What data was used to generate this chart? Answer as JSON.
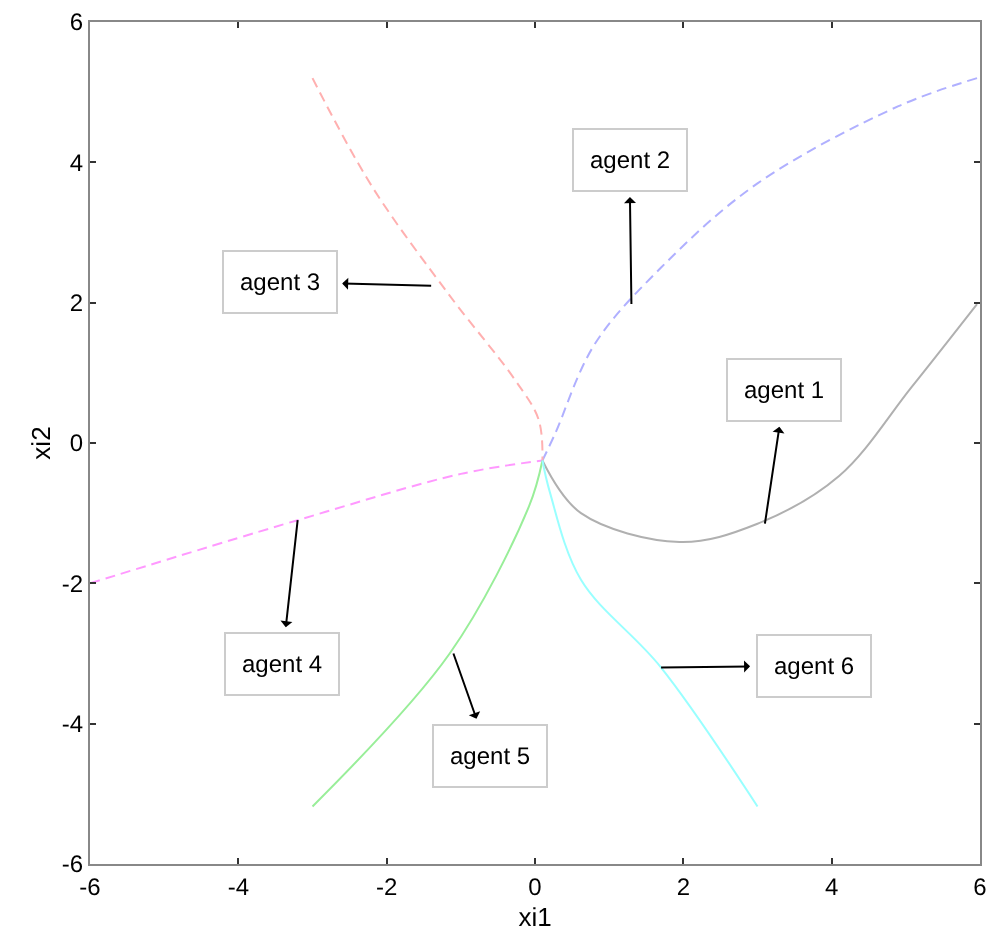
{
  "chart_data": {
    "type": "line",
    "xlabel": "xi1",
    "ylabel": "xi2",
    "xlim": [
      -6,
      6
    ],
    "ylim": [
      -6,
      6
    ],
    "xticks": [
      -6,
      -4,
      -2,
      0,
      2,
      4,
      6
    ],
    "yticks": [
      -6,
      -4,
      -2,
      0,
      2,
      4,
      6
    ],
    "series": [
      {
        "color": "#b0b0b0",
        "line_style": "solid",
        "x": [
          5.96,
          5.08,
          4.1,
          3.0,
          1.95,
          0.62,
          0.1
        ],
        "values": [
          1.98,
          0.8,
          -0.47,
          -1.15,
          -1.41,
          -1.0,
          -0.25
        ]
      },
      {
        "color": "#b0b0ff",
        "line_style": "dashed",
        "x": [
          5.96,
          4.9,
          3.0,
          1.7,
          0.8,
          0.27,
          0.1
        ],
        "values": [
          5.2,
          4.8,
          3.7,
          2.5,
          1.4,
          0.13,
          -0.25
        ]
      },
      {
        "color": "#ffb0b0",
        "line_style": "dashed",
        "x": [
          -3.0,
          -2.2,
          -1.15,
          -0.27,
          0.05,
          0.1
        ],
        "values": [
          5.2,
          3.66,
          2.1,
          0.9,
          0.33,
          -0.25
        ]
      },
      {
        "color": "#ff99ff",
        "line_style": "dashed",
        "x": [
          -6.0,
          -3.2,
          -1.0,
          0.1
        ],
        "values": [
          -2.0,
          -1.1,
          -0.44,
          -0.25
        ]
      },
      {
        "color": "#99ee99",
        "line_style": "solid",
        "x": [
          -3.0,
          -1.15,
          -0.08,
          0.1
        ],
        "values": [
          -5.18,
          -3.0,
          -0.9,
          -0.25
        ]
      },
      {
        "color": "#99ffff",
        "line_style": "solid",
        "x": [
          3.0,
          1.7,
          0.62,
          0.2,
          0.1
        ],
        "values": [
          -5.18,
          -3.2,
          -1.95,
          -0.7,
          -0.25
        ]
      }
    ],
    "annotations": [
      {
        "text": "agent 1",
        "x": 3.1,
        "y": -1.15
      },
      {
        "text": "agent 2",
        "x": 1.3,
        "y": 1.98
      },
      {
        "text": "agent 3",
        "x": -1.4,
        "y": 2.24
      },
      {
        "text": "agent 4",
        "x": -3.2,
        "y": -1.1
      },
      {
        "text": "agent 5",
        "x": -1.1,
        "y": -3.0
      },
      {
        "text": "agent 6",
        "x": 1.7,
        "y": -3.2
      }
    ]
  }
}
